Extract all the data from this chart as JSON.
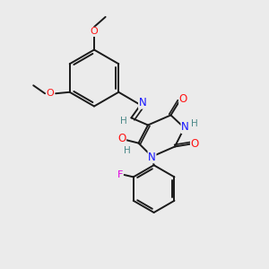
{
  "bg_color": "#ebebeb",
  "bond_color": "#1a1a1a",
  "atom_colors": {
    "N": "#1414ff",
    "O": "#ff1414",
    "F": "#e000e0",
    "H": "#4a8888"
  },
  "figsize": [
    3.0,
    3.0
  ],
  "dpi": 100,
  "lw": 1.4,
  "fs": 7.5
}
